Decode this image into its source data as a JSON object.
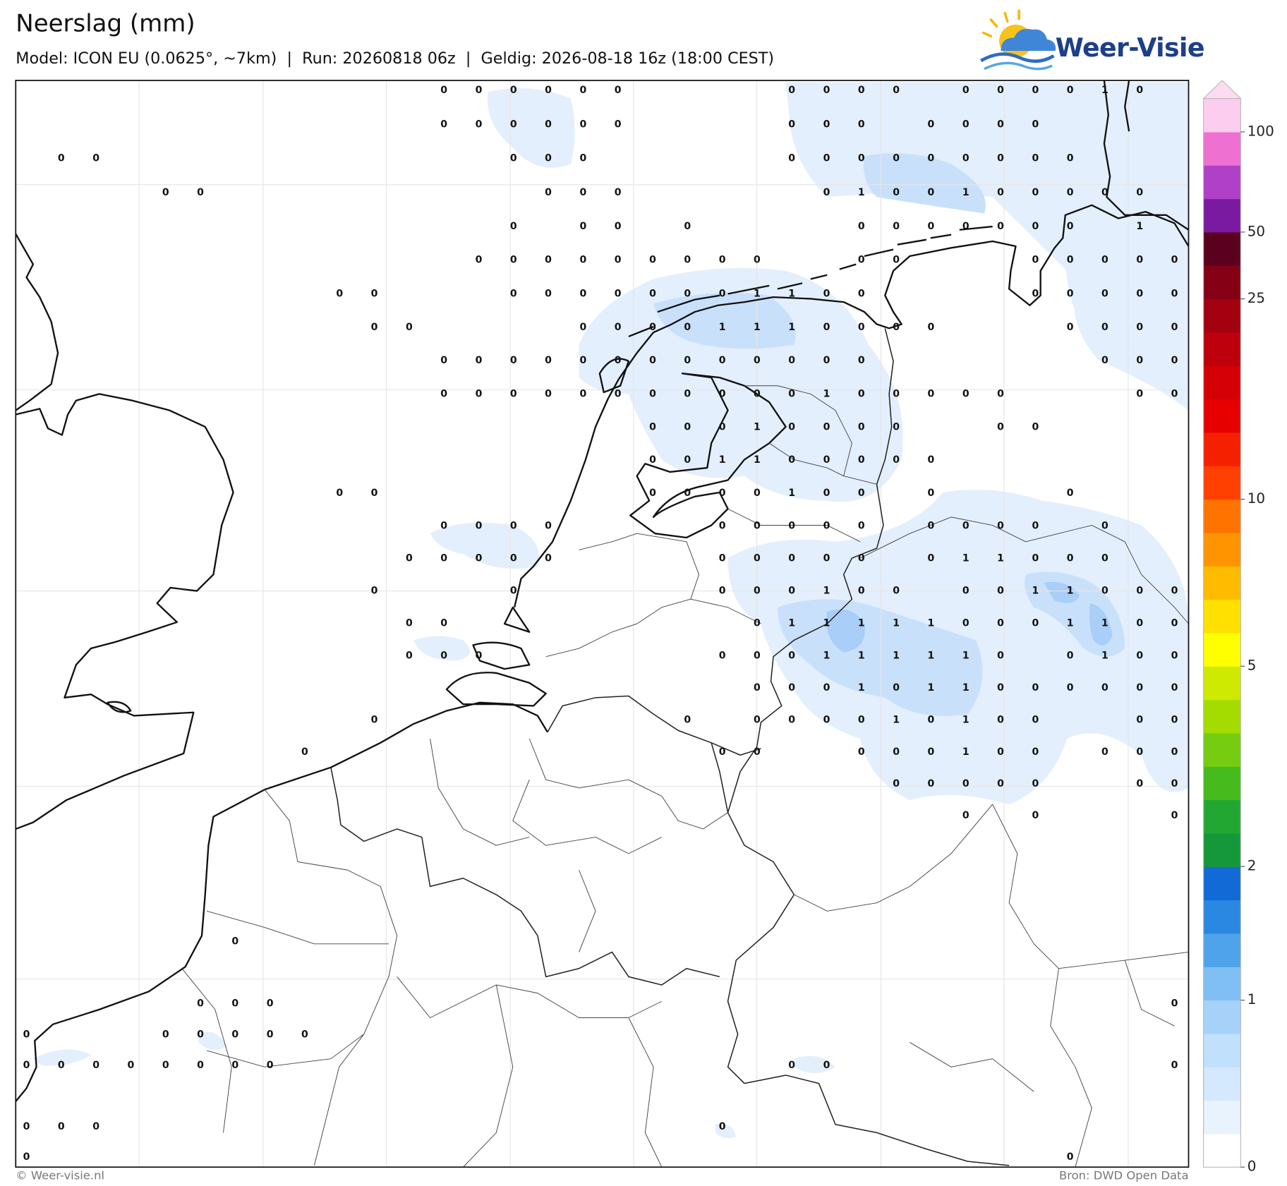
{
  "header": {
    "title": "Neerslag (mm)",
    "subtitle": "Model: ICON EU (0.0625°, ~7km)  |  Run: 20260818 06z  |  Geldig: 2026-08-18 16z (18:00 CEST)",
    "logo": "Weer-Visie"
  },
  "map": {
    "grid_values": [
      [
        null,
        null,
        null,
        null,
        null,
        null,
        null,
        null,
        null,
        null,
        null,
        null,
        0,
        0,
        0,
        0,
        0,
        0,
        null,
        null,
        null,
        null,
        0,
        0,
        0,
        0,
        null,
        0,
        0,
        0,
        0,
        1,
        0,
        null
      ],
      [
        null,
        null,
        null,
        null,
        null,
        null,
        null,
        null,
        null,
        null,
        null,
        null,
        0,
        0,
        0,
        0,
        0,
        0,
        null,
        null,
        null,
        null,
        0,
        0,
        0,
        null,
        0,
        0,
        0,
        0,
        null,
        null,
        null,
        null
      ],
      [
        null,
        0,
        0,
        null,
        null,
        null,
        null,
        null,
        null,
        null,
        null,
        null,
        null,
        null,
        0,
        0,
        0,
        null,
        null,
        null,
        null,
        null,
        0,
        0,
        0,
        0,
        0,
        0,
        0,
        0,
        0,
        null,
        null,
        null
      ],
      [
        null,
        null,
        null,
        null,
        0,
        0,
        null,
        null,
        null,
        null,
        null,
        null,
        null,
        null,
        null,
        0,
        0,
        0,
        null,
        null,
        null,
        null,
        null,
        0,
        1,
        0,
        0,
        1,
        0,
        0,
        0,
        0,
        0,
        null
      ],
      [
        null,
        null,
        null,
        null,
        null,
        null,
        null,
        null,
        null,
        null,
        null,
        null,
        null,
        null,
        0,
        null,
        0,
        0,
        null,
        0,
        null,
        null,
        null,
        null,
        0,
        0,
        0,
        0,
        0,
        0,
        0,
        null,
        1,
        null
      ],
      [
        null,
        null,
        null,
        null,
        null,
        null,
        null,
        null,
        null,
        null,
        null,
        null,
        null,
        0,
        0,
        0,
        0,
        0,
        0,
        0,
        0,
        0,
        null,
        null,
        0,
        0,
        null,
        null,
        null,
        0,
        0,
        0,
        0,
        0
      ],
      [
        null,
        null,
        null,
        null,
        null,
        null,
        null,
        null,
        null,
        0,
        0,
        null,
        null,
        null,
        0,
        0,
        0,
        0,
        0,
        0,
        0,
        1,
        1,
        0,
        0,
        null,
        null,
        null,
        null,
        0,
        0,
        0,
        0,
        0
      ],
      [
        null,
        null,
        null,
        null,
        null,
        null,
        null,
        null,
        null,
        null,
        0,
        0,
        null,
        null,
        null,
        null,
        0,
        0,
        0,
        0,
        1,
        1,
        1,
        0,
        0,
        0,
        0,
        null,
        null,
        null,
        0,
        0,
        0,
        0
      ],
      [
        null,
        null,
        null,
        null,
        null,
        null,
        null,
        null,
        null,
        null,
        null,
        null,
        0,
        0,
        0,
        0,
        0,
        0,
        0,
        0,
        0,
        0,
        0,
        0,
        0,
        null,
        null,
        null,
        null,
        null,
        null,
        0,
        0,
        0
      ],
      [
        null,
        null,
        null,
        null,
        null,
        null,
        null,
        null,
        null,
        null,
        null,
        null,
        0,
        0,
        0,
        0,
        0,
        0,
        0,
        0,
        0,
        0,
        0,
        1,
        0,
        0,
        0,
        0,
        0,
        null,
        null,
        null,
        0,
        0
      ],
      [
        null,
        null,
        null,
        null,
        null,
        null,
        null,
        null,
        null,
        null,
        null,
        null,
        null,
        null,
        null,
        null,
        null,
        null,
        0,
        0,
        0,
        1,
        0,
        0,
        0,
        0,
        null,
        null,
        0,
        0,
        null,
        null,
        null,
        null
      ],
      [
        null,
        null,
        null,
        null,
        null,
        null,
        null,
        null,
        null,
        null,
        null,
        null,
        null,
        null,
        null,
        null,
        null,
        null,
        0,
        0,
        1,
        1,
        0,
        0,
        0,
        0,
        0,
        null,
        null,
        null,
        null,
        null,
        null,
        null
      ],
      [
        null,
        null,
        null,
        null,
        null,
        null,
        null,
        null,
        null,
        0,
        0,
        null,
        null,
        null,
        null,
        null,
        null,
        null,
        0,
        0,
        0,
        0,
        1,
        0,
        0,
        null,
        0,
        null,
        null,
        null,
        0,
        null,
        null,
        null
      ],
      [
        null,
        null,
        null,
        null,
        null,
        null,
        null,
        null,
        null,
        null,
        null,
        null,
        0,
        0,
        0,
        0,
        null,
        null,
        null,
        null,
        0,
        0,
        0,
        0,
        0,
        null,
        0,
        0,
        0,
        0,
        null,
        0,
        null,
        null
      ],
      [
        null,
        null,
        null,
        null,
        null,
        null,
        null,
        null,
        null,
        null,
        null,
        0,
        0,
        0,
        0,
        0,
        null,
        null,
        null,
        null,
        0,
        0,
        0,
        0,
        0,
        null,
        0,
        1,
        1,
        0,
        0,
        0,
        null,
        null
      ],
      [
        null,
        null,
        null,
        null,
        null,
        null,
        null,
        null,
        null,
        null,
        0,
        null,
        null,
        null,
        0,
        null,
        null,
        null,
        null,
        null,
        0,
        0,
        0,
        1,
        0,
        0,
        null,
        0,
        0,
        1,
        1,
        0,
        0,
        0
      ],
      [
        null,
        null,
        null,
        null,
        null,
        null,
        null,
        null,
        null,
        null,
        null,
        0,
        0,
        null,
        null,
        null,
        null,
        null,
        null,
        null,
        null,
        0,
        1,
        1,
        1,
        1,
        1,
        0,
        0,
        0,
        1,
        1,
        0,
        0
      ],
      [
        null,
        null,
        null,
        null,
        null,
        null,
        null,
        null,
        null,
        null,
        null,
        0,
        0,
        0,
        null,
        null,
        null,
        null,
        null,
        null,
        0,
        0,
        0,
        1,
        1,
        1,
        1,
        1,
        0,
        null,
        0,
        1,
        0,
        0
      ],
      [
        null,
        null,
        null,
        null,
        null,
        null,
        null,
        null,
        null,
        null,
        null,
        null,
        null,
        null,
        null,
        null,
        null,
        null,
        null,
        null,
        null,
        0,
        0,
        0,
        1,
        0,
        1,
        1,
        0,
        0,
        0,
        0,
        0,
        0
      ],
      [
        null,
        null,
        null,
        null,
        null,
        null,
        null,
        null,
        null,
        null,
        0,
        null,
        null,
        null,
        null,
        null,
        null,
        null,
        null,
        0,
        null,
        0,
        0,
        0,
        0,
        1,
        0,
        1,
        0,
        0,
        null,
        null,
        0,
        0
      ],
      [
        null,
        null,
        null,
        null,
        null,
        null,
        null,
        null,
        0,
        null,
        null,
        null,
        null,
        null,
        null,
        null,
        null,
        null,
        null,
        null,
        0,
        0,
        null,
        null,
        0,
        0,
        0,
        1,
        0,
        0,
        null,
        0,
        0,
        0
      ],
      [
        null,
        null,
        null,
        null,
        null,
        null,
        null,
        null,
        null,
        null,
        null,
        null,
        null,
        null,
        null,
        null,
        null,
        null,
        null,
        null,
        null,
        null,
        null,
        null,
        null,
        0,
        0,
        0,
        0,
        0,
        null,
        null,
        0,
        0
      ],
      [
        null,
        null,
        null,
        null,
        null,
        null,
        null,
        null,
        null,
        null,
        null,
        null,
        null,
        null,
        null,
        null,
        null,
        null,
        null,
        null,
        null,
        null,
        null,
        null,
        null,
        null,
        null,
        0,
        null,
        0,
        null,
        null,
        null,
        0
      ],
      [
        null,
        null,
        null,
        null,
        null,
        null,
        null,
        null,
        null,
        null,
        null,
        null,
        null,
        null,
        null,
        null,
        null,
        null,
        null,
        null,
        null,
        null,
        null,
        null,
        null,
        null,
        null,
        null,
        null,
        null,
        null,
        null,
        null,
        null
      ],
      [
        null,
        null,
        null,
        null,
        null,
        null,
        null,
        null,
        null,
        null,
        null,
        null,
        null,
        null,
        null,
        null,
        null,
        null,
        null,
        null,
        null,
        null,
        null,
        null,
        null,
        null,
        null,
        null,
        null,
        null,
        null,
        null,
        null,
        null
      ],
      [
        null,
        null,
        null,
        null,
        null,
        null,
        null,
        null,
        null,
        null,
        null,
        null,
        null,
        null,
        null,
        null,
        null,
        null,
        null,
        null,
        null,
        null,
        null,
        null,
        null,
        null,
        null,
        null,
        null,
        null,
        null,
        null,
        null,
        null
      ],
      [
        null,
        null,
        null,
        null,
        null,
        null,
        0,
        null,
        null,
        null,
        null,
        null,
        null,
        null,
        null,
        null,
        null,
        null,
        null,
        null,
        null,
        null,
        null,
        null,
        null,
        null,
        null,
        null,
        null,
        null,
        null,
        null,
        null,
        null
      ],
      [
        null,
        null,
        null,
        null,
        null,
        null,
        null,
        null,
        null,
        null,
        null,
        null,
        null,
        null,
        null,
        null,
        null,
        null,
        null,
        null,
        null,
        null,
        null,
        null,
        null,
        null,
        null,
        null,
        null,
        null,
        null,
        null,
        null,
        null
      ],
      [
        null,
        null,
        null,
        null,
        null,
        0,
        0,
        0,
        null,
        null,
        null,
        null,
        null,
        null,
        null,
        null,
        null,
        null,
        null,
        null,
        null,
        null,
        null,
        null,
        null,
        null,
        null,
        null,
        null,
        null,
        null,
        null,
        null,
        0
      ],
      [
        0,
        null,
        null,
        null,
        0,
        0,
        0,
        0,
        0,
        null,
        null,
        null,
        null,
        null,
        null,
        null,
        null,
        null,
        null,
        null,
        null,
        null,
        null,
        null,
        null,
        null,
        null,
        null,
        null,
        null,
        null,
        null,
        null,
        null
      ],
      [
        0,
        0,
        0,
        0,
        0,
        0,
        0,
        0,
        null,
        null,
        null,
        null,
        null,
        null,
        null,
        null,
        null,
        null,
        null,
        null,
        null,
        null,
        0,
        0,
        null,
        null,
        null,
        null,
        null,
        null,
        null,
        null,
        null,
        0
      ],
      [
        null,
        null,
        null,
        null,
        null,
        null,
        null,
        null,
        null,
        null,
        null,
        null,
        null,
        null,
        null,
        null,
        null,
        null,
        null,
        null,
        null,
        null,
        null,
        null,
        null,
        null,
        null,
        null,
        null,
        null,
        null,
        null,
        null,
        null
      ],
      [
        0,
        0,
        0,
        null,
        null,
        null,
        null,
        null,
        null,
        null,
        null,
        null,
        null,
        null,
        null,
        null,
        null,
        null,
        null,
        null,
        0,
        null,
        null,
        null,
        null,
        null,
        null,
        null,
        null,
        null,
        null,
        null,
        null,
        null
      ],
      [
        0,
        null,
        null,
        null,
        null,
        null,
        null,
        null,
        null,
        null,
        null,
        null,
        null,
        null,
        null,
        null,
        null,
        null,
        null,
        null,
        null,
        null,
        null,
        null,
        null,
        null,
        null,
        null,
        null,
        null,
        0,
        null,
        null,
        null
      ]
    ]
  },
  "colorbar": {
    "colors": [
      "#ffffff",
      "#e8f3fe",
      "#d4e9fd",
      "#c0e0fc",
      "#a6d2fa",
      "#80bff3",
      "#4ea3ea",
      "#2a88e2",
      "#126ad6",
      "#15983a",
      "#22a832",
      "#45bb1e",
      "#75cc10",
      "#a5dc00",
      "#cdea00",
      "#ffff00",
      "#ffe000",
      "#ffbb00",
      "#ff9400",
      "#ff7300",
      "#ff4000",
      "#f52000",
      "#e60000",
      "#d40006",
      "#bd000c",
      "#a30010",
      "#850014",
      "#5c0020",
      "#7a1aa0",
      "#b040c8",
      "#ee70d0",
      "#fccdee"
    ],
    "extend_color": "#fddcf2",
    "ticks": [
      0,
      1,
      2,
      5,
      10,
      25,
      50,
      100
    ]
  },
  "footer": {
    "credit": "© Weer-visie.nl",
    "source": "Bron: DWD Open Data"
  }
}
